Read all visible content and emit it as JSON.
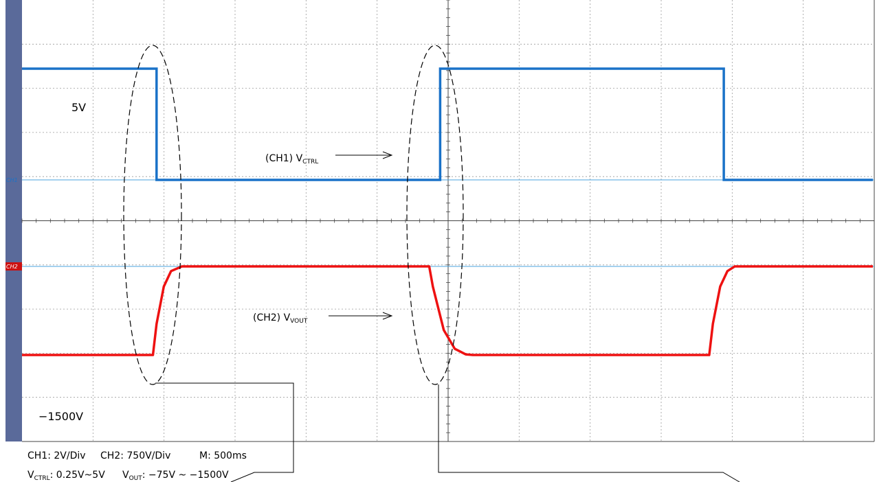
{
  "chart_data": {
    "type": "line",
    "grid": true,
    "x": {
      "label": "",
      "unit": "ms",
      "divisions": 12,
      "per_division": 500,
      "range": [
        0,
        6000
      ]
    },
    "y": {
      "divisions": 10
    },
    "channels": [
      {
        "id": "CH1",
        "marker": "CH1",
        "label_prefix": "(CH1) V",
        "label_sub": "CTRL",
        "color": "#1a72c8",
        "level_label": "5V",
        "levels": [
          0.25,
          5
        ],
        "points": [
          [
            0,
            5
          ],
          [
            1850,
            5
          ],
          [
            1850,
            0.25
          ],
          [
            5750,
            0.25
          ],
          [
            5750,
            5
          ],
          [
            9650,
            5
          ],
          [
            9650,
            0.25
          ],
          [
            11700,
            0.25
          ]
        ]
      },
      {
        "id": "CH2",
        "marker": "CH2",
        "label_prefix": "(CH2) V",
        "label_sub": "VOUT",
        "color": "#ee1111",
        "level_label": "−1500V",
        "levels": [
          -75,
          -1500
        ],
        "points": [
          [
            0,
            -1500
          ],
          [
            1800,
            -1500
          ],
          [
            1850,
            -1000
          ],
          [
            1950,
            -400
          ],
          [
            2050,
            -150
          ],
          [
            2200,
            -75
          ],
          [
            5600,
            -75
          ],
          [
            5650,
            -400
          ],
          [
            5800,
            -1100
          ],
          [
            5950,
            -1400
          ],
          [
            6100,
            -1490
          ],
          [
            6200,
            -1500
          ],
          [
            9450,
            -1500
          ],
          [
            9500,
            -1000
          ],
          [
            9600,
            -400
          ],
          [
            9700,
            -150
          ],
          [
            9800,
            -75
          ],
          [
            11700,
            -75
          ]
        ]
      }
    ],
    "footer": {
      "line1_a": "CH1: 2V/Div",
      "line1_b": "CH2: 750V/Div",
      "line1_c": "M: 500ms",
      "line2_a": "V",
      "line2_a_sub": "CTRL",
      "line2_a_val": ": 0.25V~5V",
      "line2_b": "V",
      "line2_b_sub": "OUT",
      "line2_b_val": ": −75V ~ −1500V"
    }
  }
}
